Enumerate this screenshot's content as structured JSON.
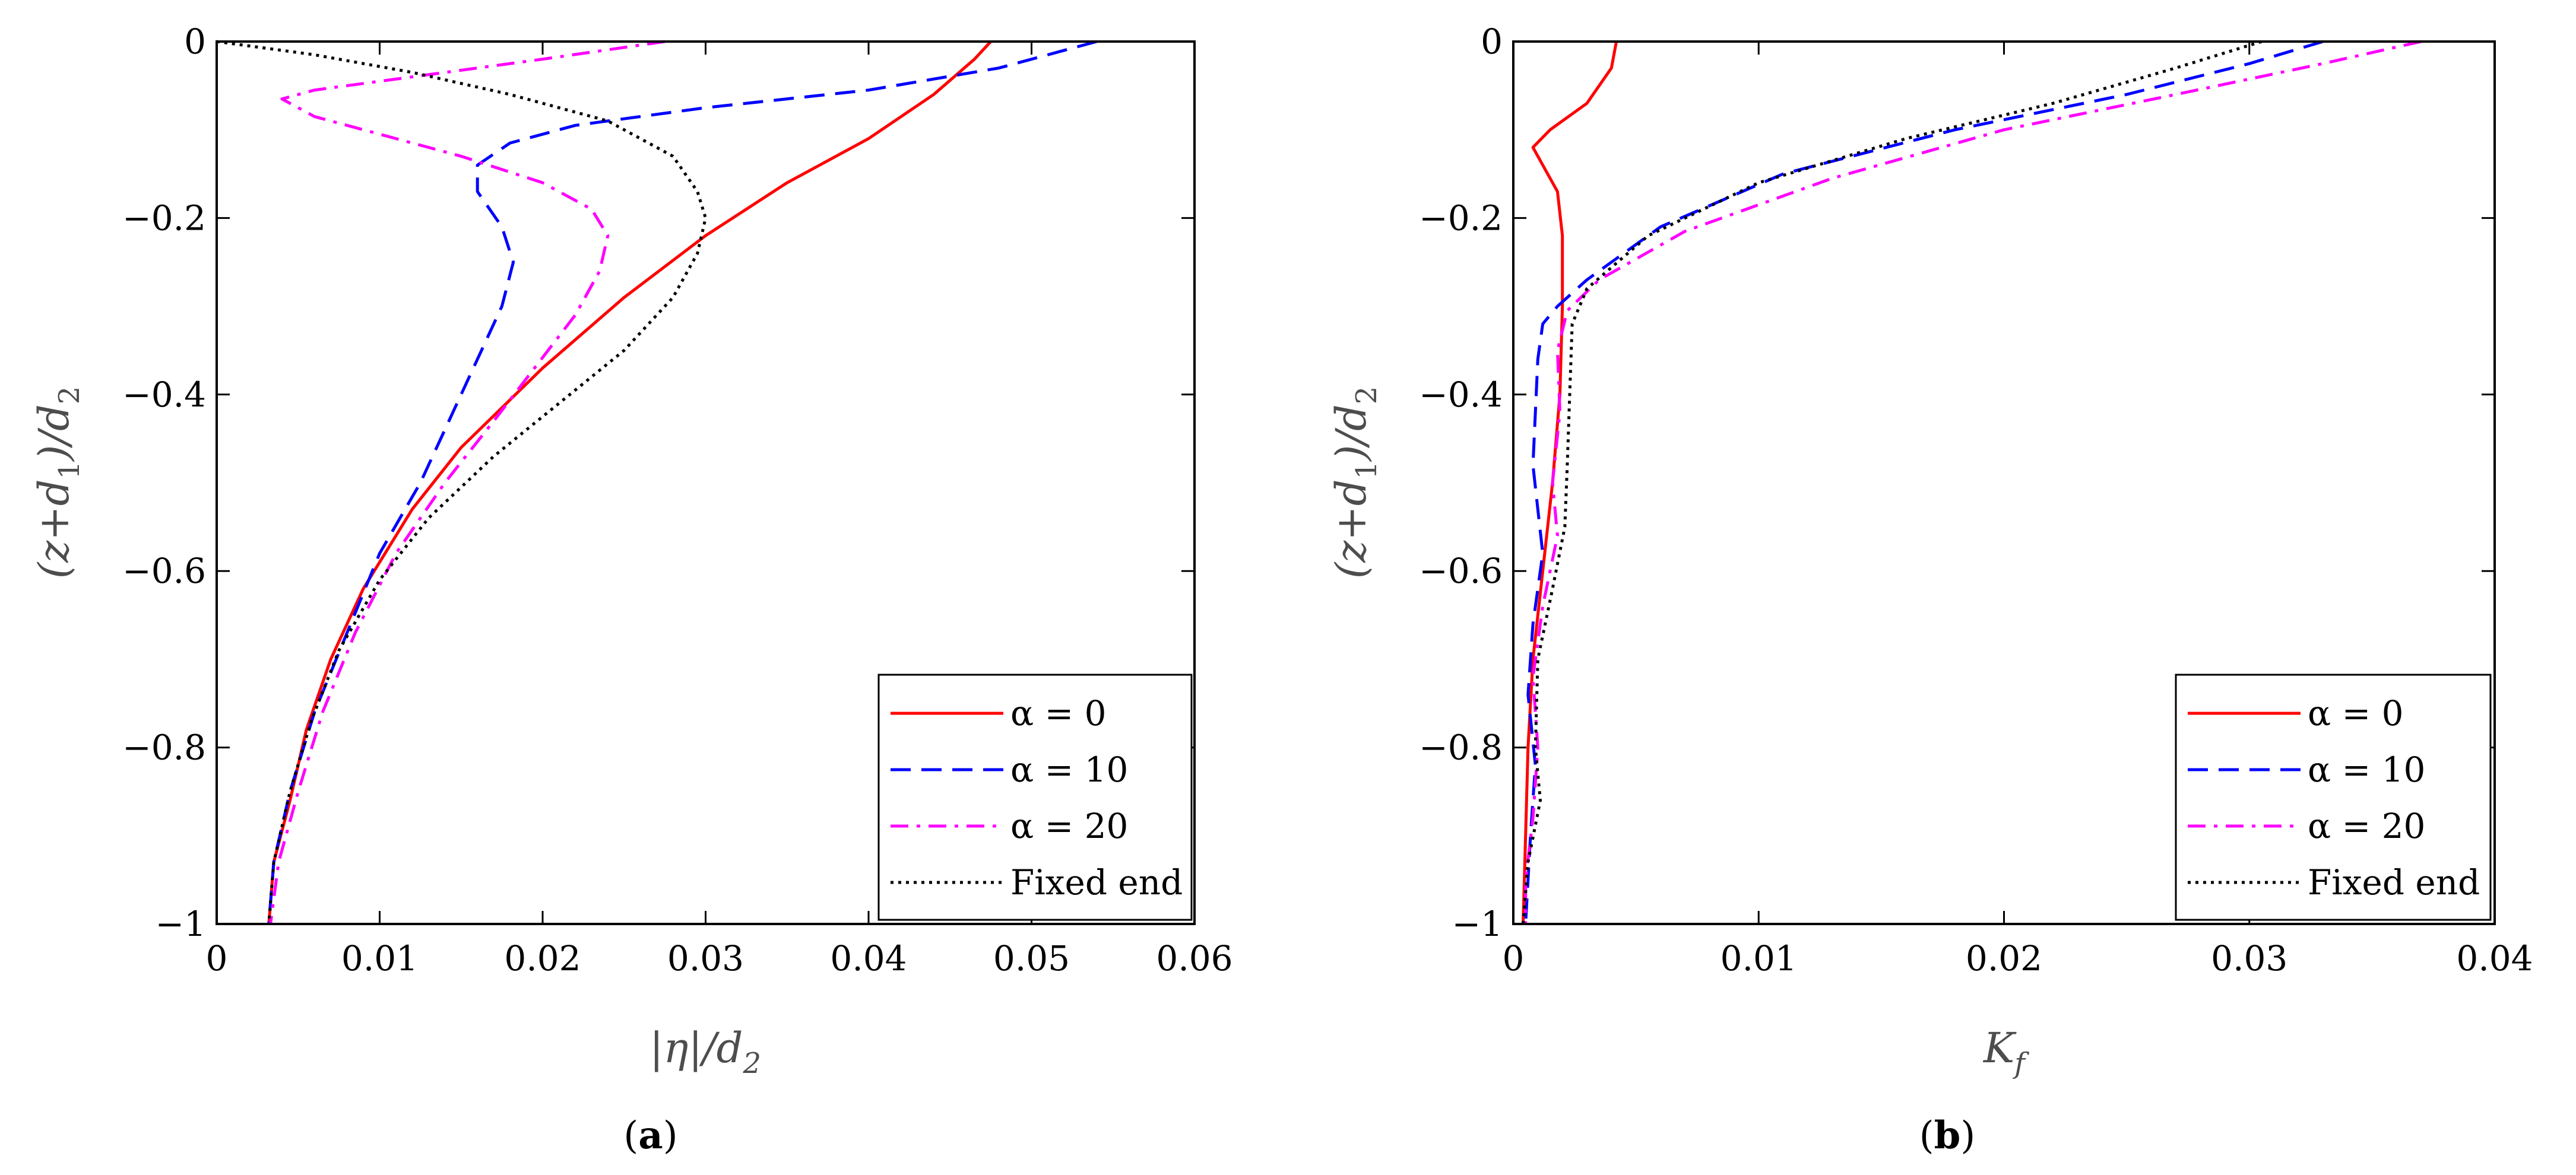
{
  "chart_data": [
    {
      "type": "line",
      "panel": "a",
      "caption": "(a)",
      "caption_letter": "a",
      "xlabel": "|η|/d2",
      "xlabel_main": "|η|/d",
      "xlabel_sub": "2",
      "ylabel": "(z+d1)/d2",
      "ylabel_parts": [
        "(z+d",
        "1",
        ")/d",
        "2"
      ],
      "xlim": [
        0,
        0.06
      ],
      "ylim": [
        -1,
        0
      ],
      "xticks": [
        0,
        0.01,
        0.02,
        0.03,
        0.04,
        0.05,
        0.06
      ],
      "xtick_labels": [
        "0",
        "0.01",
        "0.02",
        "0.03",
        "0.04",
        "0.05",
        "0.06"
      ],
      "yticks": [
        0,
        -0.2,
        -0.4,
        -0.6,
        -0.8,
        -1
      ],
      "ytick_labels": [
        "0",
        "−0.2",
        "−0.4",
        "−0.6",
        "−0.8",
        "−1"
      ],
      "legend_position": "bottom-right",
      "series": [
        {
          "name": "α = 0",
          "color": "#ff0000",
          "dash": "solid",
          "points": [
            [
              0.0475,
              0
            ],
            [
              0.0465,
              -0.02
            ],
            [
              0.044,
              -0.06
            ],
            [
              0.04,
              -0.11
            ],
            [
              0.035,
              -0.16
            ],
            [
              0.03,
              -0.22
            ],
            [
              0.025,
              -0.29
            ],
            [
              0.02,
              -0.37
            ],
            [
              0.015,
              -0.46
            ],
            [
              0.012,
              -0.53
            ],
            [
              0.009,
              -0.62
            ],
            [
              0.007,
              -0.7
            ],
            [
              0.0055,
              -0.78
            ],
            [
              0.0045,
              -0.86
            ],
            [
              0.0035,
              -0.93
            ],
            [
              0.0032,
              -1.0
            ]
          ]
        },
        {
          "name": "α = 10",
          "color": "#0000ff",
          "dash": "dashed",
          "points": [
            [
              0.054,
              0
            ],
            [
              0.048,
              -0.03
            ],
            [
              0.04,
              -0.055
            ],
            [
              0.03,
              -0.075
            ],
            [
              0.022,
              -0.095
            ],
            [
              0.018,
              -0.115
            ],
            [
              0.016,
              -0.14
            ],
            [
              0.016,
              -0.17
            ],
            [
              0.0175,
              -0.21
            ],
            [
              0.0182,
              -0.25
            ],
            [
              0.0175,
              -0.3
            ],
            [
              0.016,
              -0.36
            ],
            [
              0.0145,
              -0.42
            ],
            [
              0.0125,
              -0.5
            ],
            [
              0.01,
              -0.58
            ],
            [
              0.008,
              -0.67
            ],
            [
              0.006,
              -0.76
            ],
            [
              0.0045,
              -0.85
            ],
            [
              0.0035,
              -0.93
            ],
            [
              0.0032,
              -1.0
            ]
          ]
        },
        {
          "name": "α = 20",
          "color": "#ff00ff",
          "dash": "dashdot",
          "points": [
            [
              0.0275,
              0
            ],
            [
              0.02,
              -0.02
            ],
            [
              0.012,
              -0.04
            ],
            [
              0.006,
              -0.055
            ],
            [
              0.004,
              -0.065
            ],
            [
              0.006,
              -0.085
            ],
            [
              0.01,
              -0.105
            ],
            [
              0.015,
              -0.13
            ],
            [
              0.02,
              -0.16
            ],
            [
              0.023,
              -0.19
            ],
            [
              0.024,
              -0.22
            ],
            [
              0.0235,
              -0.26
            ],
            [
              0.022,
              -0.31
            ],
            [
              0.0195,
              -0.37
            ],
            [
              0.017,
              -0.43
            ],
            [
              0.014,
              -0.5
            ],
            [
              0.011,
              -0.58
            ],
            [
              0.0085,
              -0.67
            ],
            [
              0.0065,
              -0.76
            ],
            [
              0.005,
              -0.85
            ],
            [
              0.0038,
              -0.93
            ],
            [
              0.0033,
              -1.0
            ]
          ]
        },
        {
          "name": "Fixed end",
          "color": "#000000",
          "dash": "dotted",
          "points": [
            [
              0.0,
              0
            ],
            [
              0.006,
              -0.015
            ],
            [
              0.012,
              -0.035
            ],
            [
              0.018,
              -0.06
            ],
            [
              0.024,
              -0.09
            ],
            [
              0.028,
              -0.13
            ],
            [
              0.0295,
              -0.17
            ],
            [
              0.03,
              -0.2
            ],
            [
              0.0295,
              -0.24
            ],
            [
              0.028,
              -0.29
            ],
            [
              0.025,
              -0.35
            ],
            [
              0.021,
              -0.41
            ],
            [
              0.017,
              -0.47
            ],
            [
              0.013,
              -0.54
            ],
            [
              0.01,
              -0.61
            ],
            [
              0.0075,
              -0.69
            ],
            [
              0.0058,
              -0.77
            ],
            [
              0.0045,
              -0.85
            ],
            [
              0.0035,
              -0.93
            ],
            [
              0.0032,
              -1.0
            ]
          ]
        }
      ]
    },
    {
      "type": "line",
      "panel": "b",
      "caption": "(b)",
      "caption_letter": "b",
      "xlabel": "Kf",
      "xlabel_main": "K",
      "xlabel_sub": "f",
      "ylabel": "(z+d1)/d2",
      "ylabel_parts": [
        "(z+d",
        "1",
        ")/d",
        "2"
      ],
      "xlim": [
        0,
        0.04
      ],
      "ylim": [
        -1,
        0
      ],
      "xticks": [
        0,
        0.01,
        0.02,
        0.03,
        0.04
      ],
      "xtick_labels": [
        "0",
        "0.01",
        "0.02",
        "0.03",
        "0.04"
      ],
      "yticks": [
        0,
        -0.2,
        -0.4,
        -0.6,
        -0.8,
        -1
      ],
      "ytick_labels": [
        "0",
        "−0.2",
        "−0.4",
        "−0.6",
        "−0.8",
        "−1"
      ],
      "legend_position": "bottom-right",
      "series": [
        {
          "name": "α = 0",
          "color": "#ff0000",
          "dash": "solid",
          "points": [
            [
              0.0042,
              0
            ],
            [
              0.004,
              -0.03
            ],
            [
              0.003,
              -0.07
            ],
            [
              0.0015,
              -0.1
            ],
            [
              0.0008,
              -0.12
            ],
            [
              0.0012,
              -0.14
            ],
            [
              0.0018,
              -0.17
            ],
            [
              0.002,
              -0.22
            ],
            [
              0.002,
              -0.3
            ],
            [
              0.0019,
              -0.4
            ],
            [
              0.0016,
              -0.5
            ],
            [
              0.0012,
              -0.6
            ],
            [
              0.0008,
              -0.7
            ],
            [
              0.0006,
              -0.8
            ],
            [
              0.0005,
              -0.9
            ],
            [
              0.0004,
              -1.0
            ]
          ]
        },
        {
          "name": "α = 10",
          "color": "#0000ff",
          "dash": "dashed",
          "points": [
            [
              0.033,
              0
            ],
            [
              0.03,
              -0.025
            ],
            [
              0.025,
              -0.06
            ],
            [
              0.018,
              -0.1
            ],
            [
              0.011,
              -0.15
            ],
            [
              0.006,
              -0.21
            ],
            [
              0.003,
              -0.27
            ],
            [
              0.0018,
              -0.3
            ],
            [
              0.0012,
              -0.32
            ],
            [
              0.001,
              -0.36
            ],
            [
              0.0009,
              -0.42
            ],
            [
              0.0008,
              -0.48
            ],
            [
              0.001,
              -0.53
            ],
            [
              0.0012,
              -0.58
            ],
            [
              0.0008,
              -0.66
            ],
            [
              0.0006,
              -0.74
            ],
            [
              0.0009,
              -0.82
            ],
            [
              0.0007,
              -0.9
            ],
            [
              0.0005,
              -1.0
            ]
          ]
        },
        {
          "name": "α = 20",
          "color": "#ff00ff",
          "dash": "dashdot",
          "points": [
            [
              0.037,
              0
            ],
            [
              0.033,
              -0.025
            ],
            [
              0.027,
              -0.06
            ],
            [
              0.02,
              -0.1
            ],
            [
              0.013,
              -0.155
            ],
            [
              0.007,
              -0.215
            ],
            [
              0.0035,
              -0.27
            ],
            [
              0.0022,
              -0.305
            ],
            [
              0.0018,
              -0.35
            ],
            [
              0.0019,
              -0.42
            ],
            [
              0.0016,
              -0.5
            ],
            [
              0.0018,
              -0.56
            ],
            [
              0.0012,
              -0.64
            ],
            [
              0.0008,
              -0.72
            ],
            [
              0.001,
              -0.8
            ],
            [
              0.0008,
              -0.88
            ],
            [
              0.0005,
              -0.95
            ],
            [
              0.0005,
              -1.0
            ]
          ]
        },
        {
          "name": "Fixed end",
          "color": "#000000",
          "dash": "dotted",
          "points": [
            [
              0.0305,
              0
            ],
            [
              0.027,
              -0.03
            ],
            [
              0.022,
              -0.07
            ],
            [
              0.016,
              -0.11
            ],
            [
              0.01,
              -0.16
            ],
            [
              0.0055,
              -0.22
            ],
            [
              0.003,
              -0.28
            ],
            [
              0.0024,
              -0.32
            ],
            [
              0.0023,
              -0.4
            ],
            [
              0.0022,
              -0.48
            ],
            [
              0.0021,
              -0.55
            ],
            [
              0.0016,
              -0.62
            ],
            [
              0.001,
              -0.7
            ],
            [
              0.0009,
              -0.8
            ],
            [
              0.0011,
              -0.86
            ],
            [
              0.0006,
              -0.93
            ],
            [
              0.0004,
              -1.0
            ]
          ]
        }
      ]
    }
  ]
}
